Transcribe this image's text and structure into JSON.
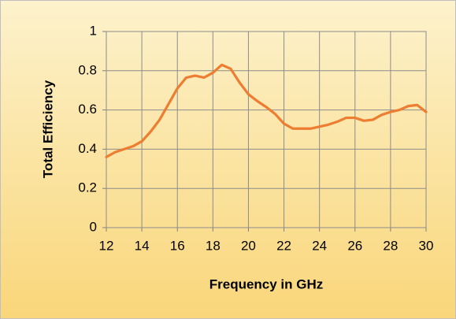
{
  "chart_data": {
    "type": "line",
    "xlabel": "Frequency in GHz",
    "ylabel": "Total Efficiency",
    "x": [
      12,
      12.5,
      13,
      13.5,
      14,
      14.5,
      15,
      15.5,
      16,
      16.5,
      17,
      17.5,
      18,
      18.5,
      19,
      19.5,
      20,
      20.5,
      21,
      21.5,
      22,
      22.5,
      23,
      23.5,
      24,
      24.5,
      25,
      25.5,
      26,
      26.5,
      27,
      27.5,
      28,
      28.5,
      29,
      29.5,
      30
    ],
    "series": [
      {
        "name": "Total Efficiency",
        "color": "#ed7d31",
        "values": [
          0.36,
          0.385,
          0.4,
          0.415,
          0.44,
          0.49,
          0.55,
          0.63,
          0.71,
          0.765,
          0.775,
          0.765,
          0.79,
          0.83,
          0.81,
          0.74,
          0.68,
          0.645,
          0.615,
          0.58,
          0.53,
          0.505,
          0.505,
          0.505,
          0.515,
          0.525,
          0.54,
          0.56,
          0.56,
          0.545,
          0.55,
          0.575,
          0.59,
          0.6,
          0.62,
          0.625,
          0.59
        ]
      }
    ],
    "xlim": [
      12,
      30
    ],
    "xticks": [
      12,
      14,
      16,
      18,
      20,
      22,
      24,
      26,
      28,
      30
    ],
    "ylim": [
      0,
      1
    ],
    "yticks": [
      0,
      0.2,
      0.4,
      0.6,
      0.8,
      1
    ],
    "grid": true
  }
}
